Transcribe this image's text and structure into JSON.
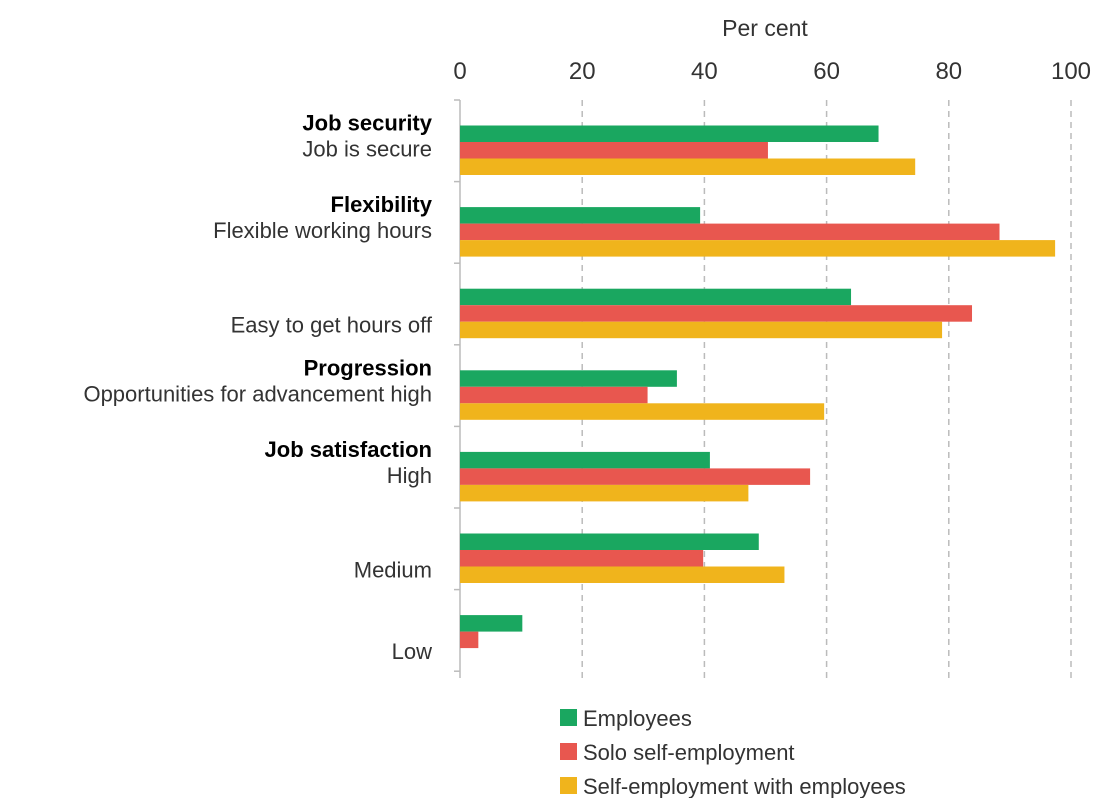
{
  "chart_data": {
    "type": "bar",
    "orientation": "horizontal",
    "xlabel": "Per cent",
    "xlim": [
      0,
      100
    ],
    "xticks": [
      "0",
      "20",
      "40",
      "60",
      "80",
      "100"
    ],
    "grid": true,
    "legend_position": "bottom",
    "groups": [
      {
        "heading": "Job security",
        "category": "Job is secure"
      },
      {
        "heading": "Flexibility",
        "category": "Flexible working hours"
      },
      {
        "heading": "",
        "category": "Easy to get hours off"
      },
      {
        "heading": "Progression",
        "category": "Opportunities for advancement high"
      },
      {
        "heading": "Job satisfaction",
        "category": "High"
      },
      {
        "heading": "",
        "category": "Medium"
      },
      {
        "heading": "",
        "category": "Low"
      }
    ],
    "series": [
      {
        "name": "Employees",
        "color": "#1aa760",
        "values": [
          68.5,
          39.3,
          64.0,
          35.5,
          40.9,
          48.9,
          10.2
        ]
      },
      {
        "name": "Solo self-employment",
        "color": "#e8574f",
        "values": [
          50.4,
          88.3,
          83.8,
          30.7,
          57.3,
          39.8,
          3.0
        ]
      },
      {
        "name": "Self-employment with employees",
        "color": "#f0b41c",
        "values": [
          74.5,
          97.4,
          78.9,
          59.6,
          47.2,
          53.1,
          0
        ]
      }
    ]
  }
}
